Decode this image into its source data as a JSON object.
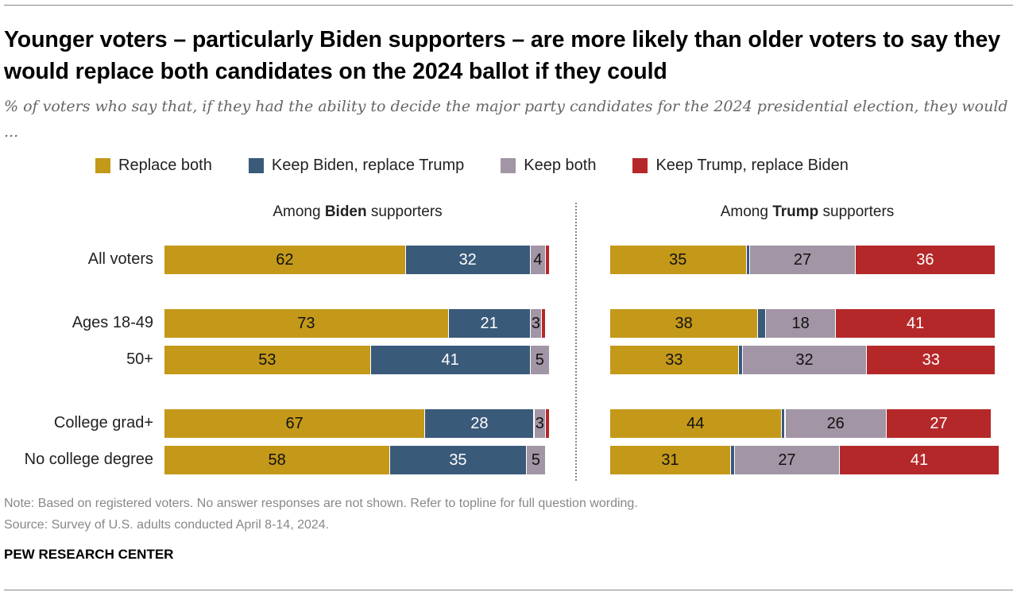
{
  "title": "Younger voters – particularly Biden supporters – are more likely than older voters to say they would replace both candidates on the 2024 ballot if they could",
  "subtitle": "% of voters who say that, if they had the ability to decide the major party candidates for the 2024 presidential election, they would ...",
  "note": "Note: Based on registered voters. No answer responses are not shown. Refer to topline for full question wording.",
  "source": "Source: Survey of U.S. adults conducted April 8-14, 2024.",
  "brand": "PEW RESEARCH CENTER",
  "colors": {
    "Replace both": "#C4991A",
    "Keep Biden, replace Trump": "#3A5A7A",
    "Keep both": "#A295A5",
    "Keep Trump, replace Biden": "#B5282A"
  },
  "chart_data": {
    "type": "bar",
    "stacked": true,
    "orientation": "horizontal",
    "legend": [
      "Replace both",
      "Keep Biden, replace Trump",
      "Keep both",
      "Keep Trump, replace Biden"
    ],
    "legend_position": "top",
    "categories": [
      "All voters",
      "Ages 18-49",
      "50+",
      "College grad+",
      "No college degree"
    ],
    "panels": [
      {
        "title_pre": "Among ",
        "title_bold": "Biden",
        "title_post": " supporters",
        "series": [
          {
            "name": "Replace both",
            "values": [
              62,
              73,
              53,
              67,
              58
            ]
          },
          {
            "name": "Keep Biden, replace Trump",
            "values": [
              32,
              21,
              41,
              28,
              35
            ]
          },
          {
            "name": "Keep both",
            "values": [
              4,
              3,
              5,
              3,
              5
            ]
          },
          {
            "name": "Keep Trump, replace Biden",
            "values": [
              1,
              1,
              0,
              1,
              0
            ]
          }
        ]
      },
      {
        "title_pre": "Among ",
        "title_bold": "Trump",
        "title_post": " supporters",
        "series": [
          {
            "name": "Replace both",
            "values": [
              35,
              38,
              33,
              44,
              31
            ]
          },
          {
            "name": "Keep Biden, replace Trump",
            "values": [
              1,
              2,
              1,
              1,
              1
            ]
          },
          {
            "name": "Keep both",
            "values": [
              27,
              18,
              32,
              26,
              27
            ]
          },
          {
            "name": "Keep Trump, replace Biden",
            "values": [
              36,
              41,
              33,
              27,
              41
            ]
          }
        ]
      }
    ]
  }
}
